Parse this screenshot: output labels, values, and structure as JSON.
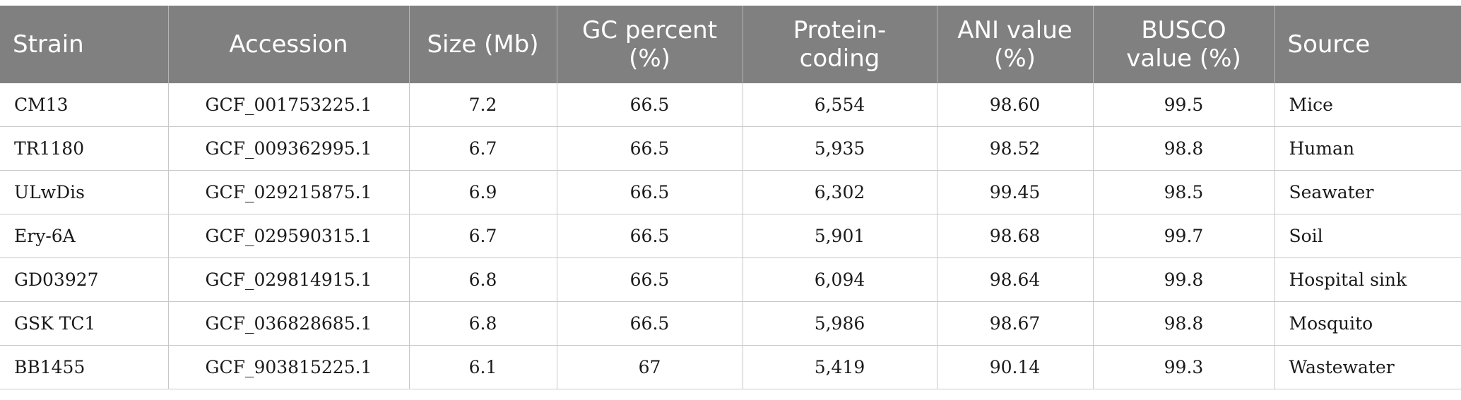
{
  "table": {
    "headers": [
      "Strain",
      "Accession",
      "Size (Mb)",
      "GC percent (%)",
      "Protein-coding",
      "ANI value (%)",
      "BUSCO value (%)",
      "Source"
    ],
    "rows": [
      [
        "CM13",
        "GCF_001753225.1",
        "7.2",
        "66.5",
        "6,554",
        "98.60",
        "99.5",
        "Mice"
      ],
      [
        "TR1180",
        "GCF_009362995.1",
        "6.7",
        "66.5",
        "5,935",
        "98.52",
        "98.8",
        "Human"
      ],
      [
        "ULwDis",
        "GCF_029215875.1",
        "6.9",
        "66.5",
        "6,302",
        "99.45",
        "98.5",
        "Seawater"
      ],
      [
        "Ery-6A",
        "GCF_029590315.1",
        "6.7",
        "66.5",
        "5,901",
        "98.68",
        "99.7",
        "Soil"
      ],
      [
        "GD03927",
        "GCF_029814915.1",
        "6.8",
        "66.5",
        "6,094",
        "98.64",
        "99.8",
        "Hospital sink"
      ],
      [
        "GSK TC1",
        "GCF_036828685.1",
        "6.8",
        "66.5",
        "5,986",
        "98.67",
        "98.8",
        "Mosquito"
      ],
      [
        "BB1455",
        "GCF_903815225.1",
        "6.1",
        "67",
        "5,419",
        "90.14",
        "99.3",
        "Wastewater"
      ]
    ]
  }
}
